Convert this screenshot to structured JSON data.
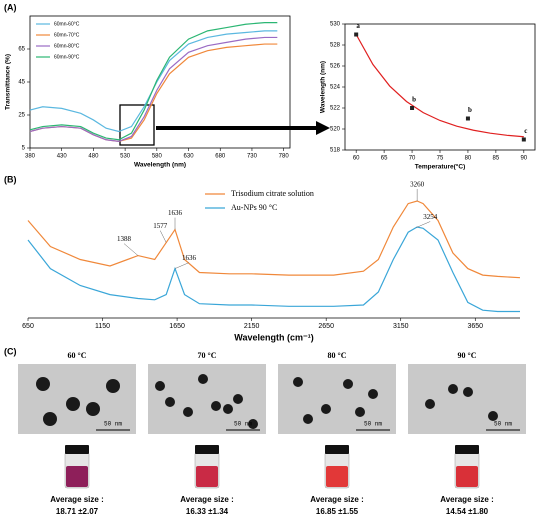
{
  "panels": [
    "(A)",
    "(B)",
    "(C)"
  ],
  "chart_data": [
    {
      "type": "line",
      "x_label": "Wavelength (nm)",
      "y_label": "Transmittance (%)",
      "x": [
        380,
        400,
        430,
        460,
        480,
        500,
        520,
        540,
        560,
        580,
        600,
        630,
        660,
        690,
        720,
        750,
        770
      ],
      "xlim": [
        380,
        790
      ],
      "xticks": [
        380,
        430,
        480,
        530,
        580,
        630,
        680,
        730,
        780
      ],
      "ylim": [
        5,
        85
      ],
      "yticks": [
        5,
        25,
        45,
        65
      ],
      "grid": false,
      "series": [
        {
          "name": "60mn-60°C",
          "color": "#5bb8e0",
          "values": [
            28,
            30,
            29,
            26,
            22,
            17,
            15,
            18,
            30,
            45,
            58,
            68,
            72,
            74,
            75,
            76,
            76
          ]
        },
        {
          "name": "60mn-70°C",
          "color": "#f0883a",
          "values": [
            15,
            17,
            18,
            17,
            13,
            10,
            9,
            11,
            22,
            38,
            50,
            60,
            64,
            66,
            67,
            68,
            68
          ]
        },
        {
          "name": "60mn-80°C",
          "color": "#9a6bc4",
          "values": [
            15,
            17,
            18,
            17,
            13,
            10,
            9,
            12,
            24,
            40,
            53,
            63,
            67,
            69,
            71,
            72,
            72
          ]
        },
        {
          "name": "60mn-90°C",
          "color": "#2bb673",
          "values": [
            16,
            18,
            19,
            18,
            14,
            11,
            10,
            14,
            28,
            46,
            60,
            71,
            76,
            78,
            80,
            81,
            81
          ]
        }
      ]
    },
    {
      "type": "scatter",
      "x_label": "Temperature(°C)",
      "y_label": "Wavelength (nm)",
      "x": [
        60,
        70,
        80,
        90
      ],
      "values": [
        529,
        522,
        521,
        519
      ],
      "annotations": [
        "a",
        "b",
        "b",
        "c"
      ],
      "color": "#222222",
      "xlim": [
        58,
        92
      ],
      "xticks": [
        60,
        65,
        70,
        75,
        80,
        85,
        90
      ],
      "ylim": [
        518,
        530
      ],
      "yticks": [
        518,
        520,
        522,
        524,
        526,
        528,
        530
      ],
      "fit": {
        "color": "#e02020",
        "x": [
          60,
          63,
          66,
          69,
          72,
          75,
          78,
          81,
          84,
          87,
          90
        ],
        "values": [
          529.0,
          526.14,
          524.09,
          522.62,
          521.56,
          520.81,
          520.27,
          519.88,
          519.6,
          519.4,
          519.26
        ]
      }
    },
    {
      "type": "line",
      "x_label": "Wavelength (cm⁻¹)",
      "x": [
        650,
        800,
        1000,
        1200,
        1388,
        1500,
        1577,
        1636,
        1700,
        1800,
        2000,
        2150,
        2400,
        2700,
        2900,
        3000,
        3100,
        3200,
        3260,
        3300,
        3400,
        3500,
        3600,
        3700,
        3800,
        3950
      ],
      "xlim": [
        650,
        3950
      ],
      "xticks": [
        650,
        1150,
        1650,
        2150,
        2650,
        3150,
        3650
      ],
      "ylim": [
        0,
        100
      ],
      "series": [
        {
          "name": "Trisodium citrate solution",
          "color": "#f0883a",
          "peaks": [
            1388,
            1577,
            1636,
            3260
          ],
          "values": [
            75,
            55,
            45,
            40,
            48,
            45,
            58,
            68,
            45,
            35,
            34,
            34,
            33,
            33,
            36,
            45,
            70,
            88,
            90,
            88,
            75,
            50,
            38,
            33,
            32,
            31
          ]
        },
        {
          "name": "Au-NPs 90 °C",
          "color": "#3aa6d8",
          "peaks": [
            1636,
            3254
          ],
          "values": [
            60,
            38,
            25,
            18,
            15,
            14,
            18,
            38,
            18,
            11,
            10,
            10,
            9,
            9,
            10,
            20,
            45,
            66,
            70,
            69,
            60,
            35,
            12,
            6,
            5,
            5
          ]
        }
      ]
    }
  ],
  "tem": [
    {
      "temp": "60 °C",
      "scale": "50 nm",
      "size_label": "Average size :",
      "size": "18.71 ±2.07",
      "liquid_color": "#8e1f5a"
    },
    {
      "temp": "70 °C",
      "scale": "50 nm",
      "size_label": "Average size :",
      "size": "16.33 ±1.34",
      "liquid_color": "#c92a45"
    },
    {
      "temp": "80 °C",
      "scale": "50 nm",
      "size_label": "Average size :",
      "size": "16.85 ±1.55",
      "liquid_color": "#e23838"
    },
    {
      "temp": "90 °C",
      "scale": "50 nm",
      "size_label": "Average size :",
      "size": "14.54 ±1.80",
      "liquid_color": "#d93038"
    }
  ]
}
